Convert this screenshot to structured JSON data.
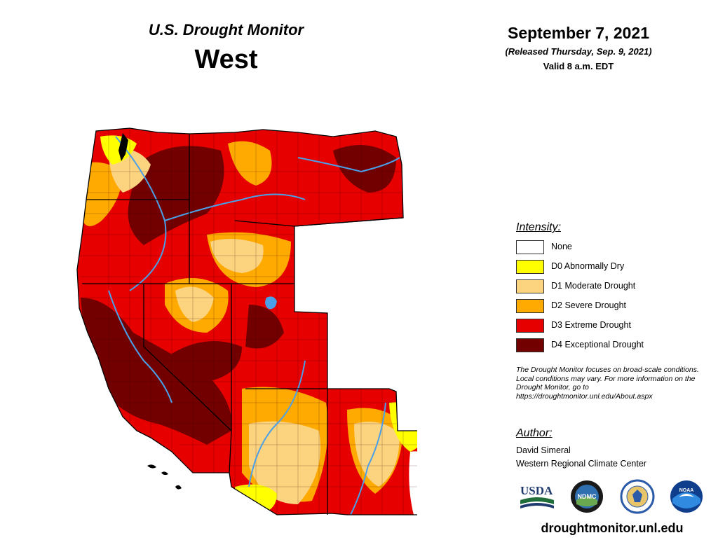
{
  "header": {
    "title": "U.S. Drought Monitor",
    "region": "West",
    "date": "September 7, 2021",
    "released": "(Released Thursday, Sep. 9, 2021)",
    "valid": "Valid 8 a.m. EDT"
  },
  "legend": {
    "title": "Intensity:",
    "items": [
      {
        "label": "None",
        "color": "#FFFFFF"
      },
      {
        "label": "D0 Abnormally Dry",
        "color": "#FFFF00"
      },
      {
        "label": "D1 Moderate Drought",
        "color": "#FCD37F"
      },
      {
        "label": "D2 Severe Drought",
        "color": "#FFAA00"
      },
      {
        "label": "D3 Extreme Drought",
        "color": "#E60000"
      },
      {
        "label": "D4 Exceptional Drought",
        "color": "#730000"
      }
    ],
    "note": "The Drought Monitor focuses on broad-scale conditions. Local conditions may vary. For more information on the Drought Monitor, go to https://droughtmonitor.unl.edu/About.aspx"
  },
  "author": {
    "heading": "Author:",
    "name": "David Simeral",
    "organization": "Western Regional Climate Center"
  },
  "logos": {
    "usda": "USDA",
    "ndmc": "NDMC",
    "noaa": "NOAA"
  },
  "footer": {
    "url": "droughtmonitor.unl.edu"
  },
  "colors": {
    "water": "#4aa0e8",
    "border": "#000000",
    "county_line": "#3a0000"
  }
}
